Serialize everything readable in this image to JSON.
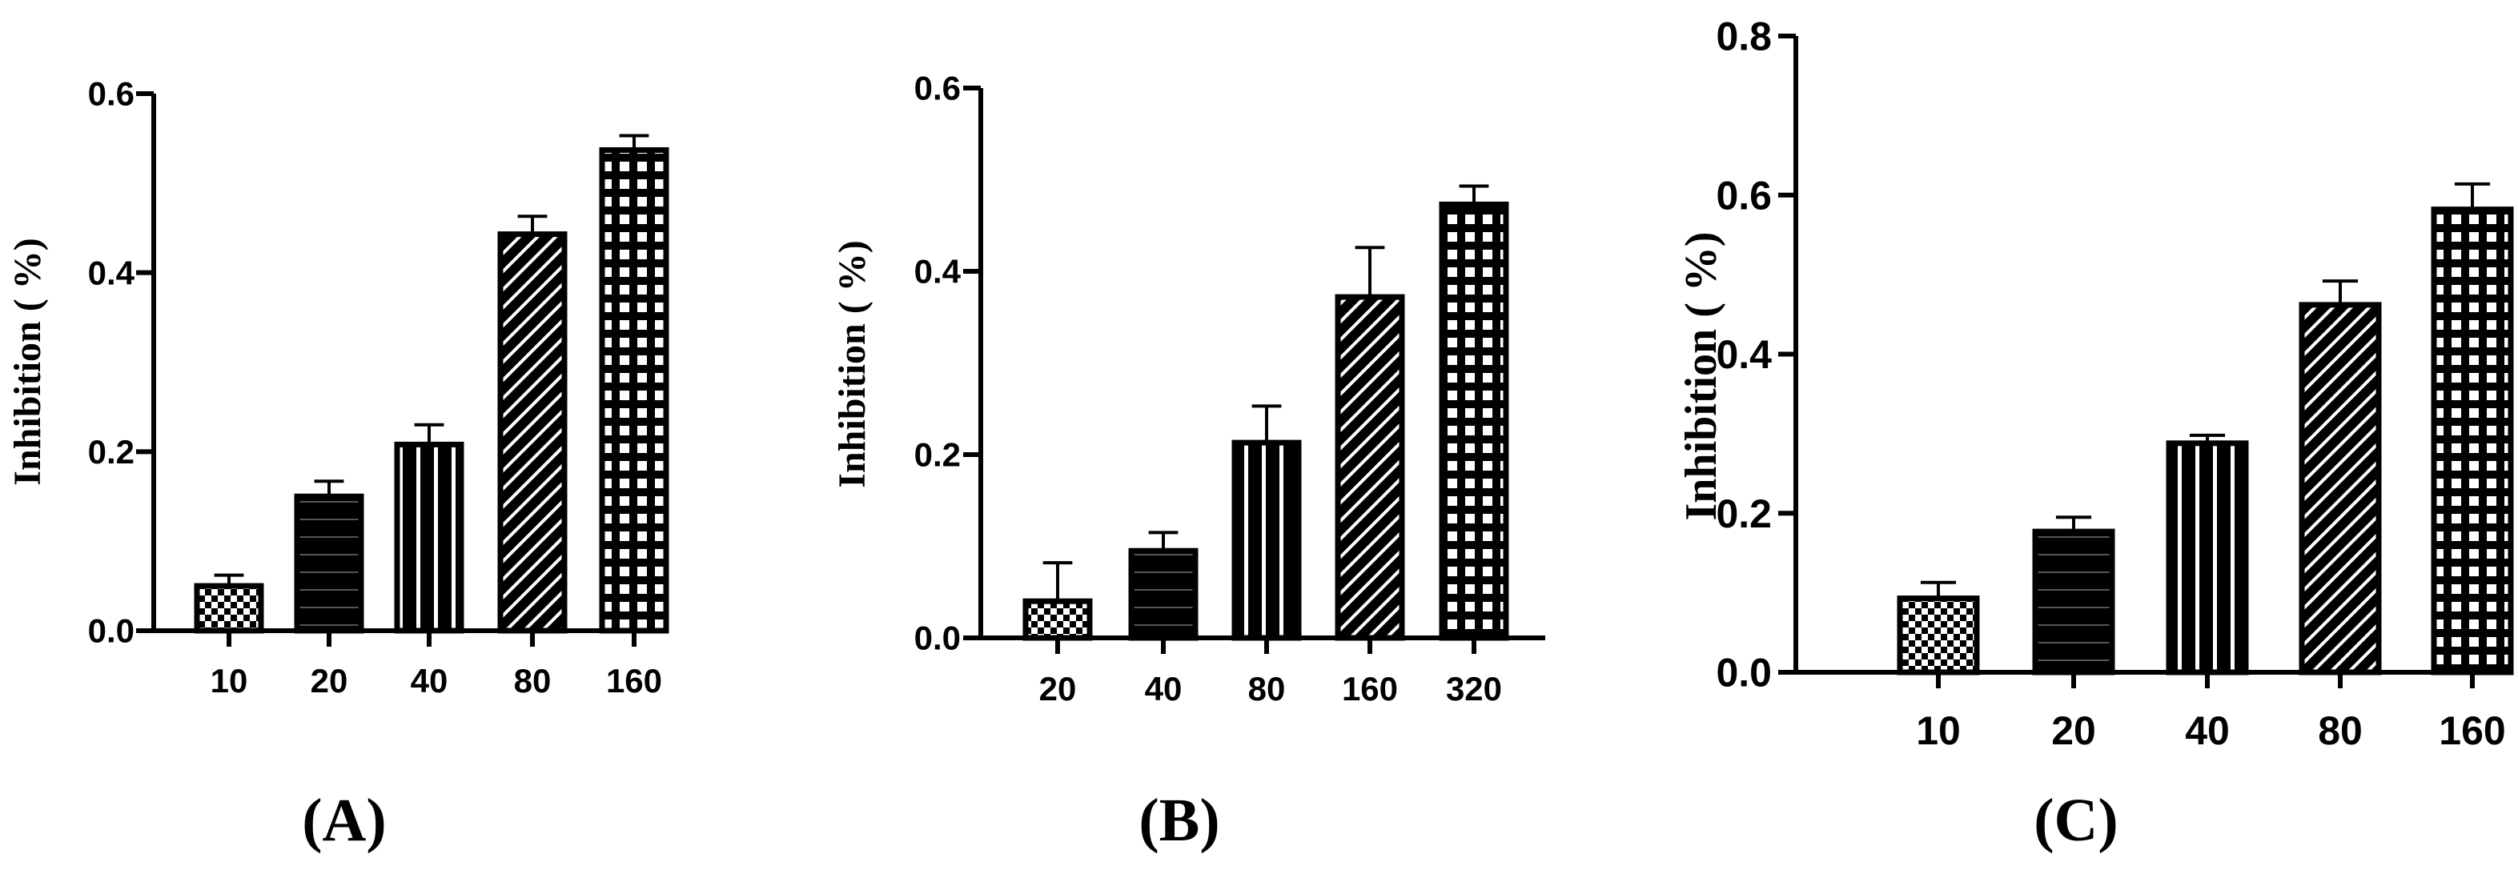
{
  "chart_data": [
    {
      "type": "bar",
      "panel_label": "(A)",
      "ylabel": "Inhibition ( %)",
      "xlabel": "",
      "categories": [
        "10",
        "20",
        "40",
        "80",
        "160"
      ],
      "values": [
        0.05,
        0.15,
        0.208,
        0.443,
        0.537
      ],
      "errors": [
        0.012,
        0.017,
        0.022,
        0.02,
        0.016
      ],
      "patterns": [
        "checker",
        "hlines",
        "vlines",
        "diag",
        "grid"
      ],
      "ylim": [
        0,
        0.6
      ],
      "yticks": [
        "0.0",
        "0.2",
        "0.4",
        "0.6"
      ],
      "ytick_values": [
        0,
        0.2,
        0.4,
        0.6
      ]
    },
    {
      "type": "bar",
      "panel_label": "(B)",
      "ylabel": "Inhibition ( %)",
      "xlabel": "",
      "categories": [
        "20",
        "40",
        "80",
        "160",
        "320"
      ],
      "values": [
        0.04,
        0.095,
        0.213,
        0.372,
        0.473
      ],
      "errors": [
        0.042,
        0.02,
        0.04,
        0.054,
        0.02
      ],
      "patterns": [
        "checker",
        "hlines",
        "vlines",
        "diag",
        "grid"
      ],
      "ylim": [
        0,
        0.6
      ],
      "yticks": [
        "0.0",
        "0.2",
        "0.4",
        "0.6"
      ],
      "ytick_values": [
        0,
        0.2,
        0.4,
        0.6
      ]
    },
    {
      "type": "bar",
      "panel_label": "(C)",
      "ylabel": "Inhibition ( %)",
      "xlabel": "",
      "categories": [
        "10",
        "20",
        "40",
        "80",
        "160"
      ],
      "values": [
        0.093,
        0.177,
        0.288,
        0.462,
        0.582
      ],
      "errors": [
        0.02,
        0.018,
        0.01,
        0.03,
        0.032
      ],
      "patterns": [
        "checker",
        "hlines",
        "vlines",
        "diag",
        "grid"
      ],
      "ylim": [
        0,
        0.8
      ],
      "yticks": [
        "0.0",
        "0.2",
        "0.4",
        "0.6",
        "0.8"
      ],
      "ytick_values": [
        0,
        0.2,
        0.4,
        0.6,
        0.8
      ]
    }
  ]
}
